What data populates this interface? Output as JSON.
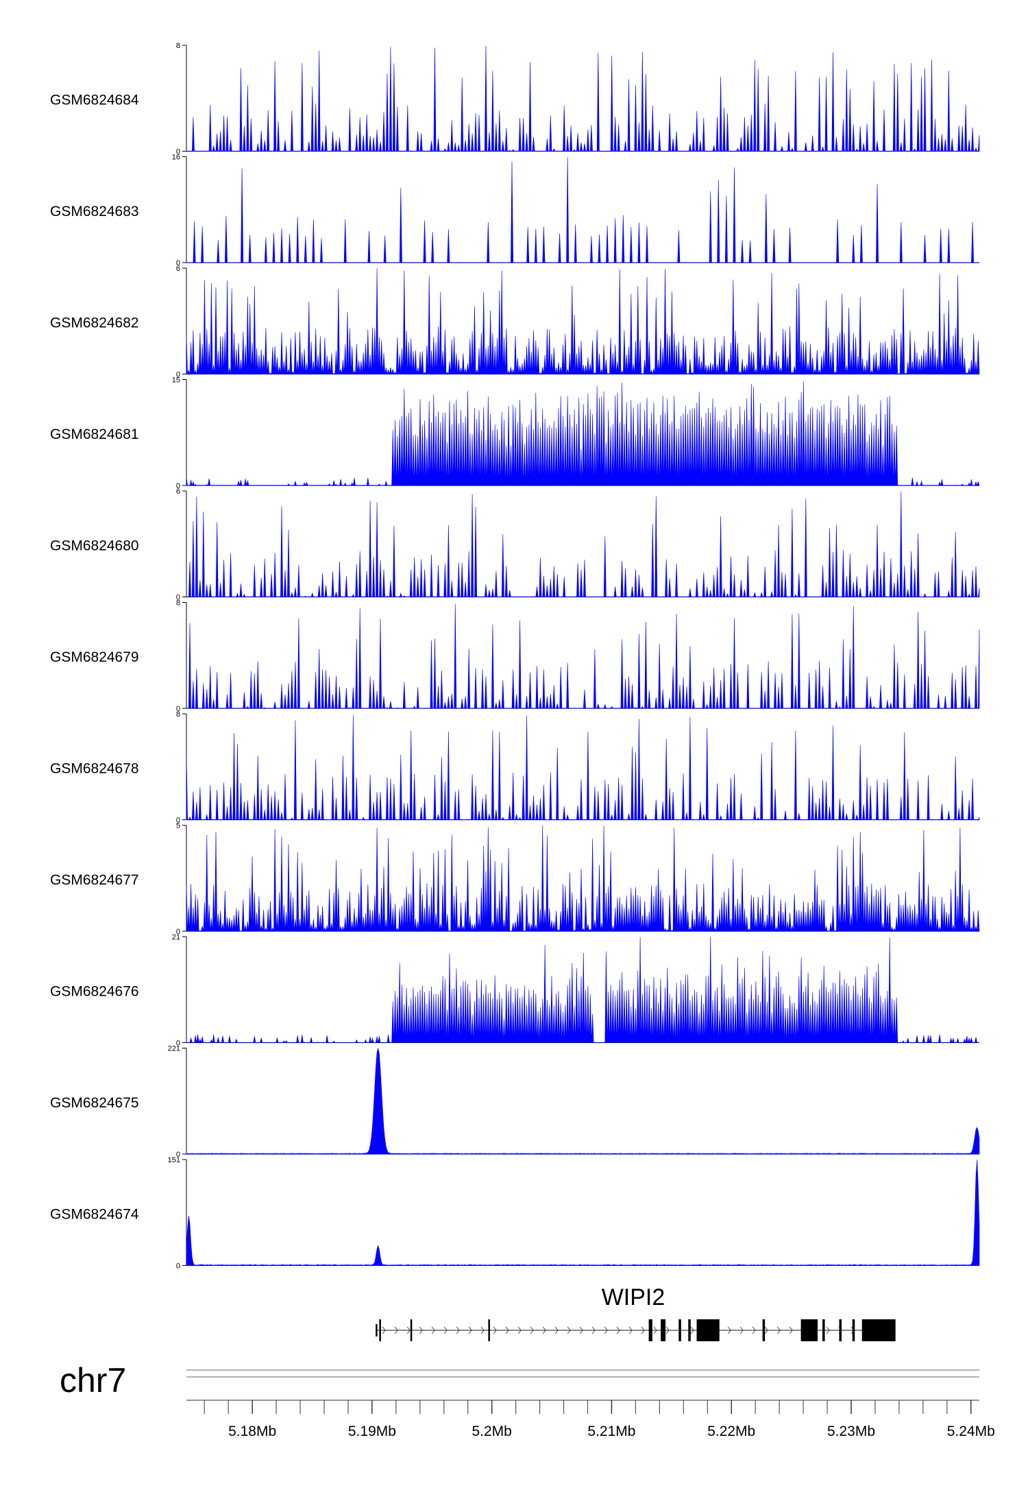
{
  "chart_data": {
    "type": "area",
    "title": "",
    "chromosome": "chr7",
    "xlim_mb": [
      5.1745,
      5.2407
    ],
    "x_ticks_mb": [
      5.18,
      5.19,
      5.2,
      5.21,
      5.22,
      5.23,
      5.24
    ],
    "x_tick_labels": [
      "5.18Mb",
      "5.19Mb",
      "5.2Mb",
      "5.21Mb",
      "5.22Mb",
      "5.23Mb",
      "5.24Mb"
    ],
    "minor_tick_step_mb": 0.002,
    "fill_color": "#0000ff",
    "tracks": [
      {
        "name": "GSM6824684",
        "ymin": "0",
        "ymax": "8",
        "ymax_value": 8,
        "profile": "sparse",
        "seed": 11
      },
      {
        "name": "GSM6824683",
        "ymin": "0",
        "ymax": "16",
        "ymax_value": 16,
        "profile": "very_sparse",
        "seed": 23
      },
      {
        "name": "GSM6824682",
        "ymin": "0",
        "ymax": "6",
        "ymax_value": 6,
        "profile": "dense",
        "seed": 37
      },
      {
        "name": "GSM6824681",
        "ymin": "0",
        "ymax": "15",
        "ymax_value": 15,
        "profile": "broad",
        "seed": 41,
        "broad_region_mb": [
          5.1917,
          5.2338
        ],
        "broad_level": 7.2
      },
      {
        "name": "GSM6824680",
        "ymin": "0",
        "ymax": "6",
        "ymax_value": 6,
        "profile": "sparse",
        "seed": 53
      },
      {
        "name": "GSM6824679",
        "ymin": "0",
        "ymax": "8",
        "ymax_value": 8,
        "profile": "sparse",
        "seed": 67
      },
      {
        "name": "GSM6824678",
        "ymin": "0",
        "ymax": "8",
        "ymax_value": 8,
        "profile": "sparse",
        "seed": 71
      },
      {
        "name": "GSM6824677",
        "ymin": "0",
        "ymax": "5",
        "ymax_value": 5,
        "profile": "dense",
        "seed": 83
      },
      {
        "name": "GSM6824676",
        "ymin": "0",
        "ymax": "21",
        "ymax_value": 21,
        "profile": "broad",
        "seed": 97,
        "broad_region_mb": [
          5.1917,
          5.2338
        ],
        "broad_level": 6.5,
        "dip_mb": [
          5.2085,
          5.2095
        ]
      },
      {
        "name": "GSM6824675",
        "ymin": "0",
        "ymax": "221",
        "ymax_value": 221,
        "profile": "peaks",
        "seed": 101,
        "baseline": 1.2,
        "peaks": [
          {
            "pos_mb": 5.1905,
            "height": 221,
            "width_mb": 0.0006
          },
          {
            "pos_mb": 5.2405,
            "height": 55,
            "width_mb": 0.0004
          }
        ]
      },
      {
        "name": "GSM6824674",
        "ymin": "0",
        "ymax": "151",
        "ymax_value": 151,
        "profile": "peaks",
        "seed": 113,
        "baseline": 0.9,
        "peaks": [
          {
            "pos_mb": 5.1747,
            "height": 70,
            "width_mb": 0.0003
          },
          {
            "pos_mb": 5.1905,
            "height": 28,
            "width_mb": 0.0003
          },
          {
            "pos_mb": 5.2405,
            "height": 151,
            "width_mb": 0.0003
          }
        ]
      }
    ],
    "gene": {
      "name": "WIPI2",
      "strand": "+",
      "start_mb": 5.1903,
      "end_mb": 5.2337,
      "exons_mb": [
        [
          5.1903,
          5.1904,
          "utr"
        ],
        [
          5.1906,
          5.1907,
          "cds"
        ],
        [
          5.1932,
          5.1933,
          "cds"
        ],
        [
          5.1997,
          5.1998,
          "cds"
        ],
        [
          5.2131,
          5.2134,
          "cds"
        ],
        [
          5.2141,
          5.2145,
          "cds"
        ],
        [
          5.2156,
          5.2158,
          "cds"
        ],
        [
          5.2164,
          5.2166,
          "cds"
        ],
        [
          5.2171,
          5.219,
          "cds"
        ],
        [
          5.2226,
          5.2228,
          "cds"
        ],
        [
          5.2258,
          5.2272,
          "cds"
        ],
        [
          5.2276,
          5.2278,
          "cds"
        ],
        [
          5.229,
          5.2292,
          "cds"
        ],
        [
          5.2301,
          5.2303,
          "cds"
        ],
        [
          5.2309,
          5.2337,
          "cds"
        ]
      ]
    }
  }
}
